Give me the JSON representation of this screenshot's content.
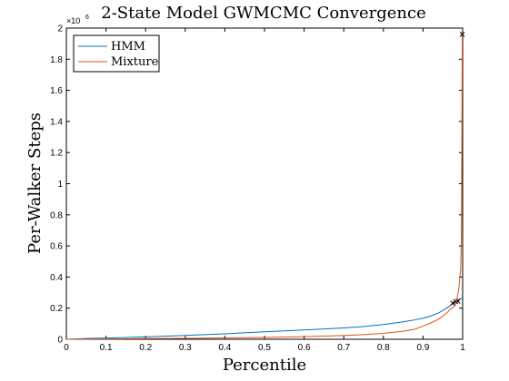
{
  "chart_data": {
    "type": "line",
    "title": "2-State Model GWMCMC Convergence",
    "xlabel": "Percentile",
    "ylabel": "Per-Walker Steps",
    "y_multiplier": "×10",
    "y_multiplier_exp": "6",
    "xlim": [
      0,
      1
    ],
    "ylim": [
      0,
      2000000
    ],
    "x_ticks": [
      "0",
      "0.1",
      "0.2",
      "0.3",
      "0.4",
      "0.5",
      "0.6",
      "0.7",
      "0.8",
      "0.9",
      "1"
    ],
    "y_ticks": [
      "0",
      "0.2",
      "0.4",
      "0.6",
      "0.8",
      "1",
      "1.2",
      "1.4",
      "1.6",
      "1.8",
      "2"
    ],
    "grid": false,
    "legend": "top-left",
    "series": [
      {
        "name": "HMM",
        "color": "#0072BD",
        "x": [
          0,
          0.05,
          0.1,
          0.2,
          0.3,
          0.4,
          0.5,
          0.6,
          0.7,
          0.75,
          0.8,
          0.85,
          0.88,
          0.9,
          0.92,
          0.94,
          0.96,
          0.97,
          0.98,
          0.99,
          1.0
        ],
        "y": [
          0,
          5000,
          8000,
          15000,
          25000,
          35000,
          48000,
          60000,
          73000,
          82000,
          95000,
          112000,
          125000,
          135000,
          150000,
          170000,
          200000,
          220000,
          240000,
          255000,
          265000
        ],
        "markers": [
          [
            0.982,
            242000
          ],
          [
            0.988,
            245000
          ]
        ]
      },
      {
        "name": "Mixture",
        "color": "#D95319",
        "x": [
          0,
          0.1,
          0.2,
          0.3,
          0.4,
          0.5,
          0.6,
          0.7,
          0.75,
          0.8,
          0.85,
          0.88,
          0.9,
          0.92,
          0.94,
          0.96,
          0.97,
          0.98,
          0.985,
          0.99,
          0.993,
          0.995,
          0.997,
          0.998,
          0.999,
          1.0
        ],
        "y": [
          0,
          2000,
          4000,
          6000,
          9000,
          12000,
          17000,
          24000,
          30000,
          38000,
          52000,
          65000,
          85000,
          105000,
          130000,
          170000,
          195000,
          215000,
          250000,
          320000,
          400000,
          450000,
          700000,
          1200000,
          1960000,
          1960000
        ],
        "markers": [
          [
            0.975,
            232000
          ],
          [
            0.999,
            1960000
          ]
        ]
      }
    ]
  }
}
